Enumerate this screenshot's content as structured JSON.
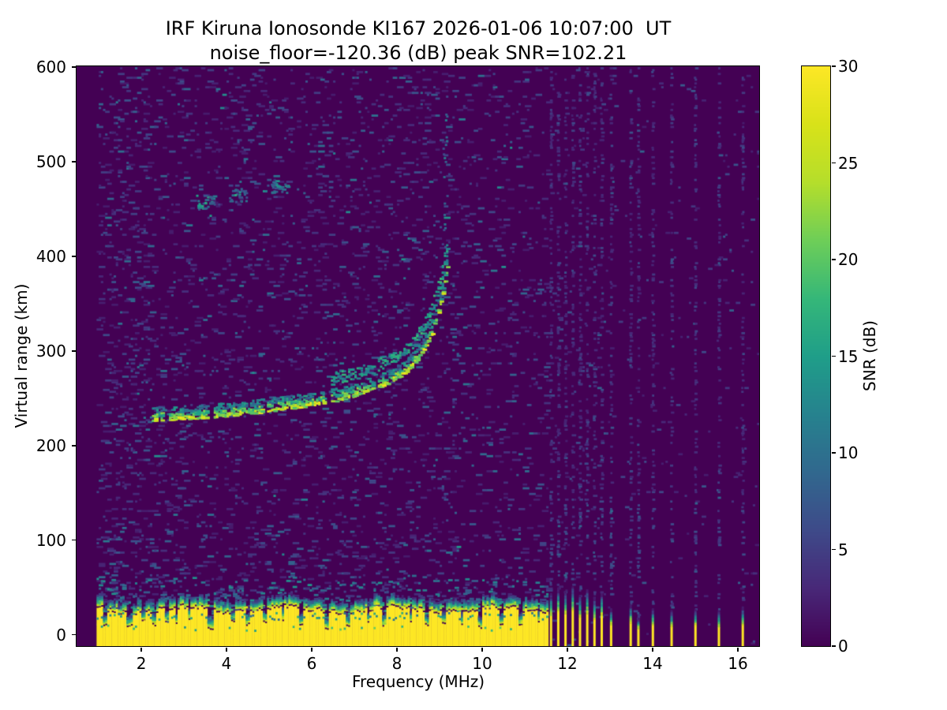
{
  "chart_data": {
    "type": "heatmap",
    "title": "IRF Kiruna Ionosonde KI167 2026-01-06 10:07:00  UT",
    "subtitle": "noise_floor=-120.36 (dB) peak SNR=102.21",
    "station": "IRF Kiruna Ionosonde KI167",
    "timestamp_ut": "2026-01-06 10:07:00",
    "noise_floor_db": -120.36,
    "peak_snr_db": 102.21,
    "xlabel": "Frequency (MHz)",
    "ylabel": "Virtual range (km)",
    "colorbar_label": "SNR (dB)",
    "xlim": [
      0.48,
      16.5
    ],
    "ylim": [
      -12,
      601
    ],
    "snr_range_db": [
      0,
      30
    ],
    "x_ticks": [
      2,
      4,
      6,
      8,
      10,
      12,
      14,
      16
    ],
    "y_ticks": [
      0,
      100,
      200,
      300,
      400,
      500,
      600
    ],
    "colorbar_ticks": [
      0,
      5,
      10,
      15,
      20,
      25,
      30
    ],
    "colormap": "viridis",
    "viridis_stops": [
      "#440154",
      "#482878",
      "#3e4a89",
      "#31688e",
      "#26828e",
      "#1f9e89",
      "#35b779",
      "#6ece58",
      "#b5de2b",
      "#d8e219",
      "#fde725"
    ],
    "grid": false,
    "content": {
      "no_data_region_mhz": [
        0.48,
        0.95
      ],
      "sweep_start_mhz": 0.95,
      "noise": {
        "base_density": 0.05,
        "low_freq_boost": 1.5,
        "low_alt_boost": 1.25,
        "right_sparse_density": 0.008,
        "dense_group_extra_density": 0.018,
        "stripe_column_density": 0.28
      },
      "ground_clutter_band": {
        "f_range": [
          0.95,
          11.55
        ],
        "top_km": 26,
        "jitter_km": 6,
        "notches": [
          {
            "f": 1.12,
            "hw": 0.05,
            "top": 9
          },
          {
            "f": 1.7,
            "hw": 0.06,
            "top": 7
          },
          {
            "f": 2.02,
            "hw": 0.04,
            "top": 14
          },
          {
            "f": 2.28,
            "hw": 0.05,
            "top": 8
          },
          {
            "f": 2.58,
            "hw": 0.05,
            "top": 11
          },
          {
            "f": 2.8,
            "hw": 0.04,
            "top": 9
          },
          {
            "f": 3.1,
            "hw": 0.04,
            "top": 14
          },
          {
            "f": 3.58,
            "hw": 0.07,
            "top": 4
          },
          {
            "f": 4.12,
            "hw": 0.04,
            "top": 13
          },
          {
            "f": 4.45,
            "hw": 0.05,
            "top": 9
          },
          {
            "f": 4.86,
            "hw": 0.05,
            "top": 11
          },
          {
            "f": 5.3,
            "hw": 0.04,
            "top": 14
          },
          {
            "f": 5.74,
            "hw": 0.05,
            "top": 8
          },
          {
            "f": 6.33,
            "hw": 0.06,
            "top": 5
          },
          {
            "f": 6.8,
            "hw": 0.05,
            "top": 8
          },
          {
            "f": 7.3,
            "hw": 0.04,
            "top": 11
          },
          {
            "f": 7.65,
            "hw": 0.05,
            "top": 8
          },
          {
            "f": 8.3,
            "hw": 0.04,
            "top": 12
          },
          {
            "f": 8.68,
            "hw": 0.05,
            "top": 8
          },
          {
            "f": 9.06,
            "hw": 0.04,
            "top": 10
          },
          {
            "f": 9.5,
            "hw": 0.05,
            "top": 8
          },
          {
            "f": 9.93,
            "hw": 0.05,
            "top": 6
          },
          {
            "f": 10.45,
            "hw": 0.05,
            "top": 8
          },
          {
            "f": 10.9,
            "hw": 0.05,
            "top": 9
          },
          {
            "f": 11.3,
            "hw": 0.04,
            "top": 11
          }
        ]
      },
      "ionospheric_trace": {
        "points": [
          [
            2.2,
            227
          ],
          [
            2.6,
            228
          ],
          [
            3.0,
            229
          ],
          [
            3.5,
            230
          ],
          [
            4.0,
            232
          ],
          [
            4.5,
            234
          ],
          [
            5.0,
            237
          ],
          [
            5.5,
            240
          ],
          [
            6.0,
            243
          ],
          [
            6.5,
            247
          ],
          [
            7.0,
            253
          ],
          [
            7.5,
            261
          ],
          [
            7.8,
            267
          ],
          [
            8.0,
            272
          ],
          [
            8.2,
            279
          ],
          [
            8.4,
            288
          ],
          [
            8.6,
            301
          ],
          [
            8.8,
            319
          ],
          [
            8.95,
            341
          ],
          [
            9.05,
            359
          ],
          [
            9.12,
            376
          ],
          [
            9.17,
            388
          ]
        ],
        "gaps": [
          [
            2.5,
            2.64
          ],
          [
            3.5,
            3.66
          ],
          [
            4.8,
            4.94
          ],
          [
            6.27,
            6.4
          ],
          [
            7.4,
            7.54
          ]
        ],
        "thickness_km": 14
      },
      "upper_branch": {
        "f_range": [
          6.4,
          9.17
        ],
        "offset_km": 20
      },
      "second_hop_echoes": [
        {
          "f": 3.5,
          "km": 456
        },
        {
          "f": 4.28,
          "km": 464
        },
        {
          "f": 5.25,
          "km": 472
        }
      ],
      "cusp_noise_column": {
        "f": 9.1,
        "km_range": [
          385,
          560
        ]
      },
      "rfi_stripes": [
        {
          "f": 11.59,
          "solid_km": 20,
          "tip_km": 42
        },
        {
          "f": 11.76,
          "solid_km": 24,
          "tip_km": 48
        },
        {
          "f": 11.93,
          "solid_km": 22,
          "tip_km": 44
        },
        {
          "f": 12.1,
          "solid_km": 25,
          "tip_km": 50
        },
        {
          "f": 12.27,
          "solid_km": 18,
          "tip_km": 40
        },
        {
          "f": 12.44,
          "solid_km": 22,
          "tip_km": 46
        },
        {
          "f": 12.61,
          "solid_km": 16,
          "tip_km": 38
        },
        {
          "f": 12.78,
          "solid_km": 20,
          "tip_km": 42
        },
        {
          "f": 13.0,
          "solid_km": 10,
          "tip_km": 26
        },
        {
          "f": 13.46,
          "solid_km": 12,
          "tip_km": 30
        },
        {
          "f": 13.64,
          "solid_km": 6,
          "tip_km": 16
        },
        {
          "f": 13.98,
          "solid_km": 10,
          "tip_km": 26
        },
        {
          "f": 14.42,
          "solid_km": 8,
          "tip_km": 24
        },
        {
          "f": 14.98,
          "solid_km": 9,
          "tip_km": 26
        },
        {
          "f": 15.53,
          "solid_km": 8,
          "tip_km": 24
        },
        {
          "f": 16.09,
          "solid_km": 10,
          "tip_km": 28
        }
      ]
    }
  }
}
